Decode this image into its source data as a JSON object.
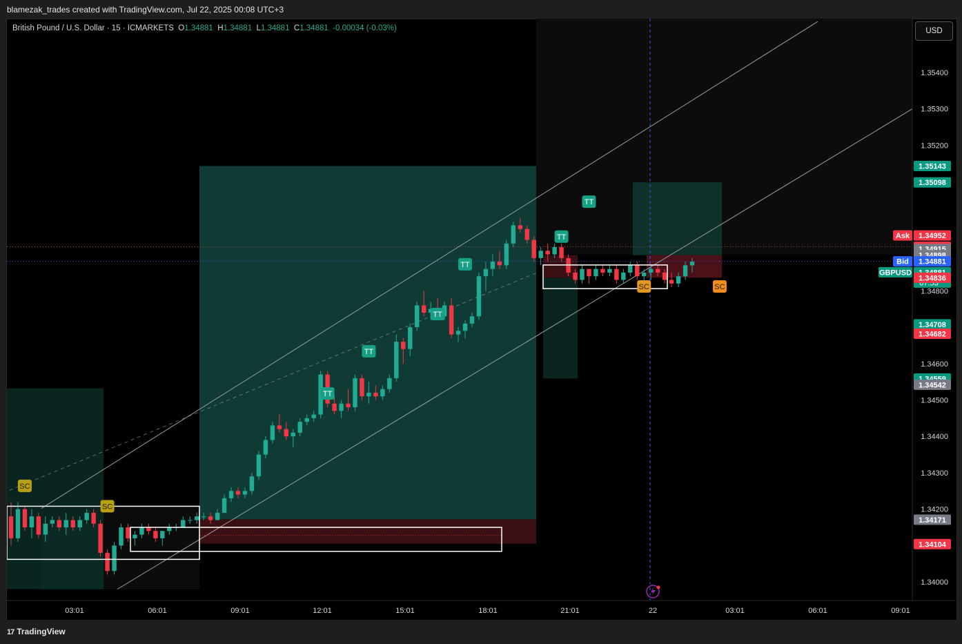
{
  "header": {
    "attribution": "blamezak_trades created with TradingView.com, Jul 22, 2025 00:08 UTC+3"
  },
  "legend": {
    "symbol": "British Pound / U.S. Dollar · 15 · ICMARKETS",
    "o_label": "O",
    "o_value": "1.34881",
    "h_label": "H",
    "h_value": "1.34881",
    "l_label": "L",
    "l_value": "1.34881",
    "c_label": "C",
    "c_value": "1.34881",
    "change": "-0.00034 (-0.03%)"
  },
  "currency_button": "USD",
  "footer": {
    "logo_text": "TradingView",
    "logo_mark": "17"
  },
  "colors": {
    "up": "#22ab94",
    "down": "#f23645",
    "zone_green": "#0f3a33",
    "zone_red": "#3a1014",
    "grid_bg": "#000000"
  },
  "chart_data": {
    "type": "candlestick",
    "symbol": "GBPUSD",
    "timeframe": "15",
    "x_ticks": [
      "03:01",
      "06:01",
      "09:01",
      "12:01",
      "15:01",
      "18:01",
      "21:01",
      "22",
      "03:01",
      "06:01",
      "09:01"
    ],
    "y_ticks": [
      "1.35400",
      "1.35300",
      "1.35200",
      "1.34800",
      "1.34600",
      "1.34500",
      "1.34400",
      "1.34300",
      "1.34200",
      "1.34000"
    ],
    "ylim": [
      1.3398,
      1.3564
    ],
    "price_labels": [
      {
        "text": "1.35143",
        "price": 1.35143,
        "color": "#089981"
      },
      {
        "text": "1.35098",
        "price": 1.35098,
        "color": "#089981"
      },
      {
        "text": "1.34952",
        "price": 1.34952,
        "color": "#f23645",
        "tag": "Ask"
      },
      {
        "text": "1.34921",
        "price": 1.34921,
        "color": "#f23645"
      },
      {
        "text": "1.34915",
        "price": 1.34915,
        "color": "#787b86"
      },
      {
        "text": "1.34898",
        "price": 1.34898,
        "color": "#787b86"
      },
      {
        "text": "1.34881",
        "price": 1.34881,
        "color": "#2962ff",
        "tag": "Bid"
      },
      {
        "text": "1.34881",
        "price": 1.34851,
        "color": "#089981",
        "tag": "GBPUSD",
        "sub": "07:53"
      },
      {
        "text": "1.34836",
        "price": 1.34836,
        "color": "#f23645"
      },
      {
        "text": "1.34708",
        "price": 1.34708,
        "color": "#089981"
      },
      {
        "text": "1.34682",
        "price": 1.34682,
        "color": "#f23645"
      },
      {
        "text": "1.34559",
        "price": 1.34559,
        "color": "#089981"
      },
      {
        "text": "1.34542",
        "price": 1.34542,
        "color": "#787b86"
      },
      {
        "text": "1.34171",
        "price": 1.34171,
        "color": "#787b86"
      },
      {
        "text": "1.34104",
        "price": 1.34104,
        "color": "#f23645"
      }
    ],
    "candles": [
      [
        1.3418,
        1.3422,
        1.341,
        1.3412
      ],
      [
        1.3412,
        1.3422,
        1.3411,
        1.342
      ],
      [
        1.342,
        1.3421,
        1.3414,
        1.3415
      ],
      [
        1.3415,
        1.342,
        1.3412,
        1.3418
      ],
      [
        1.3418,
        1.3419,
        1.3412,
        1.3413
      ],
      [
        1.3413,
        1.3418,
        1.3411,
        1.3416
      ],
      [
        1.3416,
        1.3418,
        1.3415,
        1.3417
      ],
      [
        1.3417,
        1.3418,
        1.3414,
        1.3415
      ],
      [
        1.3415,
        1.3419,
        1.3413,
        1.3417
      ],
      [
        1.3417,
        1.3418,
        1.3414,
        1.3415
      ],
      [
        1.3415,
        1.3418,
        1.3414,
        1.3417
      ],
      [
        1.3417,
        1.342,
        1.3416,
        1.3419
      ],
      [
        1.3419,
        1.342,
        1.3415,
        1.3416
      ],
      [
        1.3416,
        1.3417,
        1.3407,
        1.3408
      ],
      [
        1.3408,
        1.3409,
        1.3402,
        1.3403
      ],
      [
        1.3403,
        1.3411,
        1.3402,
        1.341
      ],
      [
        1.341,
        1.3416,
        1.3409,
        1.3415
      ],
      [
        1.3415,
        1.3416,
        1.3411,
        1.3412
      ],
      [
        1.3412,
        1.3414,
        1.341,
        1.3413
      ],
      [
        1.3413,
        1.3416,
        1.3412,
        1.3415
      ],
      [
        1.3415,
        1.3416,
        1.3413,
        1.3414
      ],
      [
        1.3414,
        1.3415,
        1.3411,
        1.3412
      ],
      [
        1.3412,
        1.3414,
        1.341,
        1.3414
      ],
      [
        1.3414,
        1.3416,
        1.3413,
        1.3415
      ],
      [
        1.3415,
        1.3416,
        1.3414,
        1.3415
      ],
      [
        1.3415,
        1.3418,
        1.3415,
        1.3417
      ],
      [
        1.3417,
        1.3418,
        1.3416,
        1.3417
      ],
      [
        1.3417,
        1.3419,
        1.3416,
        1.3418
      ],
      [
        1.3418,
        1.3419,
        1.3417,
        1.3418
      ],
      [
        1.3418,
        1.3419,
        1.3416,
        1.3417
      ],
      [
        1.3417,
        1.342,
        1.3417,
        1.3419
      ],
      [
        1.3419,
        1.3424,
        1.3419,
        1.3423
      ],
      [
        1.3423,
        1.3426,
        1.3422,
        1.3425
      ],
      [
        1.3425,
        1.3426,
        1.3423,
        1.3424
      ],
      [
        1.3424,
        1.3426,
        1.3423,
        1.3425
      ],
      [
        1.3425,
        1.343,
        1.3424,
        1.3429
      ],
      [
        1.3429,
        1.3436,
        1.3428,
        1.3435
      ],
      [
        1.3435,
        1.344,
        1.3434,
        1.3439
      ],
      [
        1.3439,
        1.3444,
        1.3438,
        1.3443
      ],
      [
        1.3443,
        1.3446,
        1.3441,
        1.3442
      ],
      [
        1.3442,
        1.3444,
        1.3439,
        1.344
      ],
      [
        1.344,
        1.3442,
        1.3437,
        1.3441
      ],
      [
        1.3441,
        1.3445,
        1.344,
        1.3444
      ],
      [
        1.3444,
        1.3446,
        1.3443,
        1.3445
      ],
      [
        1.3445,
        1.3447,
        1.3444,
        1.3446
      ],
      [
        1.3446,
        1.3458,
        1.3445,
        1.3457
      ],
      [
        1.3457,
        1.3458,
        1.3448,
        1.3449
      ],
      [
        1.3449,
        1.3451,
        1.3446,
        1.3447
      ],
      [
        1.3447,
        1.345,
        1.3445,
        1.3449
      ],
      [
        1.3449,
        1.3453,
        1.3447,
        1.3448
      ],
      [
        1.3448,
        1.3457,
        1.3447,
        1.3456
      ],
      [
        1.3456,
        1.3457,
        1.345,
        1.3451
      ],
      [
        1.3451,
        1.3455,
        1.3449,
        1.3452
      ],
      [
        1.3452,
        1.3454,
        1.345,
        1.3451
      ],
      [
        1.3451,
        1.3454,
        1.345,
        1.3453
      ],
      [
        1.3453,
        1.3457,
        1.3452,
        1.3456
      ],
      [
        1.3456,
        1.3468,
        1.3455,
        1.3466
      ],
      [
        1.3466,
        1.3467,
        1.346,
        1.3464
      ],
      [
        1.3464,
        1.3471,
        1.3462,
        1.347
      ],
      [
        1.347,
        1.3477,
        1.3469,
        1.3476
      ],
      [
        1.3476,
        1.348,
        1.3473,
        1.3474
      ],
      [
        1.3474,
        1.3477,
        1.3472,
        1.3475
      ],
      [
        1.3475,
        1.3478,
        1.3472,
        1.3473
      ],
      [
        1.3473,
        1.3477,
        1.3472,
        1.3476
      ],
      [
        1.3476,
        1.3478,
        1.3467,
        1.3468
      ],
      [
        1.3468,
        1.347,
        1.3466,
        1.3469
      ],
      [
        1.3469,
        1.3472,
        1.3467,
        1.3471
      ],
      [
        1.3471,
        1.3474,
        1.347,
        1.3473
      ],
      [
        1.3473,
        1.3485,
        1.3472,
        1.3484
      ],
      [
        1.3484,
        1.3488,
        1.348,
        1.3486
      ],
      [
        1.3486,
        1.349,
        1.3484,
        1.3488
      ],
      [
        1.3488,
        1.3491,
        1.3486,
        1.3487
      ],
      [
        1.3487,
        1.3494,
        1.3486,
        1.3493
      ],
      [
        1.3493,
        1.3499,
        1.3492,
        1.3498
      ],
      [
        1.3498,
        1.35,
        1.3496,
        1.3497
      ],
      [
        1.3497,
        1.3498,
        1.3493,
        1.3494
      ],
      [
        1.3494,
        1.3495,
        1.3488,
        1.3489
      ],
      [
        1.3489,
        1.3492,
        1.3487,
        1.3491
      ],
      [
        1.3491,
        1.3493,
        1.3488,
        1.349
      ],
      [
        1.349,
        1.3493,
        1.3489,
        1.3492
      ],
      [
        1.3492,
        1.3493,
        1.3488,
        1.3489
      ],
      [
        1.3489,
        1.349,
        1.3484,
        1.3485
      ],
      [
        1.3485,
        1.3486,
        1.3482,
        1.3483
      ],
      [
        1.3483,
        1.3487,
        1.3482,
        1.3486
      ],
      [
        1.3486,
        1.3486,
        1.3482,
        1.3484
      ],
      [
        1.3484,
        1.3487,
        1.3483,
        1.3486
      ],
      [
        1.3486,
        1.3487,
        1.3484,
        1.3485
      ],
      [
        1.3485,
        1.3487,
        1.3484,
        1.3486
      ],
      [
        1.3486,
        1.3487,
        1.3482,
        1.3483
      ],
      [
        1.3483,
        1.3486,
        1.3482,
        1.3485
      ],
      [
        1.3485,
        1.3488,
        1.3484,
        1.3487
      ],
      [
        1.3487,
        1.3488,
        1.3483,
        1.3484
      ],
      [
        1.3484,
        1.3486,
        1.3482,
        1.3485
      ],
      [
        1.3485,
        1.3487,
        1.3483,
        1.3486
      ],
      [
        1.3486,
        1.3487,
        1.3484,
        1.3485
      ],
      [
        1.3485,
        1.3486,
        1.3482,
        1.3483
      ],
      [
        1.3483,
        1.3485,
        1.3481,
        1.3482
      ],
      [
        1.3482,
        1.3485,
        1.3481,
        1.3484
      ],
      [
        1.3484,
        1.3488,
        1.3483,
        1.3487
      ],
      [
        1.3487,
        1.3489,
        1.3485,
        1.3488
      ]
    ],
    "signal_labels": [
      {
        "text": "SC",
        "bar": 2,
        "price": 1.34264,
        "color": "#b8a013",
        "text_color": "#1e1e1e"
      },
      {
        "text": "SC",
        "bar": 14,
        "price": 1.34208,
        "color": "#b8a013",
        "text_color": "#1e1e1e"
      },
      {
        "text": "TT",
        "bar": 46,
        "price": 1.34518,
        "color": "#16a085",
        "text_color": "#ffffff"
      },
      {
        "text": "TT",
        "bar": 52,
        "price": 1.34634,
        "color": "#16a085",
        "text_color": "#ffffff"
      },
      {
        "text": "TT",
        "bar": 62,
        "price": 1.34736,
        "color": "#16a085",
        "text_color": "#ffffff"
      },
      {
        "text": "TT",
        "bar": 66,
        "price": 1.34873,
        "color": "#16a085",
        "text_color": "#ffffff"
      },
      {
        "text": "TT",
        "bar": 80,
        "price": 1.34949,
        "color": "#16a085",
        "text_color": "#ffffff"
      },
      {
        "text": "TT",
        "bar": 84,
        "price": 1.35045,
        "color": "#16a085",
        "text_color": "#ffffff"
      },
      {
        "text": "SC",
        "bar": 92,
        "price": 1.34812,
        "color": "#e6961e",
        "text_color": "#1e1e1e"
      },
      {
        "text": "SC",
        "bar": 103,
        "price": 1.34812,
        "color": "#f28c18",
        "text_color": "#1e1e1e"
      }
    ]
  }
}
